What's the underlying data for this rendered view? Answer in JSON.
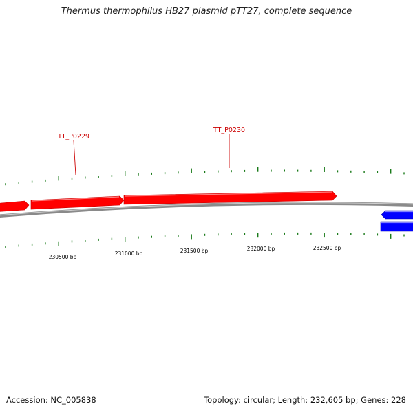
{
  "title": "Thermus thermophilus HB27 plasmid pTT27, complete sequence",
  "colors": {
    "forward_gene": "#ff0000",
    "reverse_gene": "#0000ff",
    "backbone": "#8a8a8a",
    "ticks": "#1a7a1a",
    "gene_label": "#cc0000",
    "coord_label": "#000000"
  },
  "gene_labels": [
    {
      "name": "TT_P0229",
      "strand": "forward"
    },
    {
      "name": "TT_P0230",
      "strand": "forward"
    }
  ],
  "coordinate_labels": [
    "230500 bp",
    "231000 bp",
    "231500 bp",
    "232000 bp",
    "232500 bp"
  ],
  "footer": {
    "accession": "Accession: NC_005838",
    "summary": "Topology: circular; Length: 232,605 bp; Genes: 228"
  }
}
